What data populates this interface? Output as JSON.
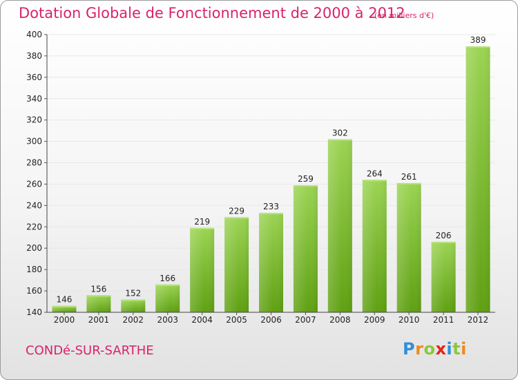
{
  "title": "Dotation Globale de Fonctionnement de 2000 à 2012",
  "unit_note": "(en milliers d'€)",
  "commune": "CONDé-SUR-SARTHE",
  "logo": {
    "letters": [
      {
        "char": "P",
        "color": "#2f8fd8"
      },
      {
        "char": "r",
        "color": "#f08a1c"
      },
      {
        "char": "o",
        "color": "#8cc63f"
      },
      {
        "char": "x",
        "color": "#e2231a"
      },
      {
        "char": "i",
        "color": "#2f8fd8"
      },
      {
        "char": "t",
        "color": "#8cc63f"
      },
      {
        "char": "i",
        "color": "#f08a1c"
      }
    ]
  },
  "colors": {
    "title": "#d8236a",
    "bar_light": "#9bd453",
    "bar_dark": "#5fa012",
    "grid": "#e8e8e8"
  },
  "chart_data": {
    "type": "bar",
    "title": "Dotation Globale de Fonctionnement de 2000 à 2012",
    "subtitle": "(en milliers d'€)",
    "xlabel": "",
    "ylabel": "",
    "categories": [
      "2000",
      "2001",
      "2002",
      "2003",
      "2004",
      "2005",
      "2006",
      "2007",
      "2008",
      "2009",
      "2010",
      "2011",
      "2012"
    ],
    "values": [
      146,
      156,
      152,
      166,
      219,
      229,
      233,
      259,
      302,
      264,
      261,
      206,
      389
    ],
    "ylim": [
      140,
      400
    ],
    "yticks": [
      140,
      160,
      180,
      200,
      220,
      240,
      260,
      280,
      300,
      320,
      340,
      360,
      380,
      400
    ],
    "grid": true,
    "legend": "none"
  }
}
